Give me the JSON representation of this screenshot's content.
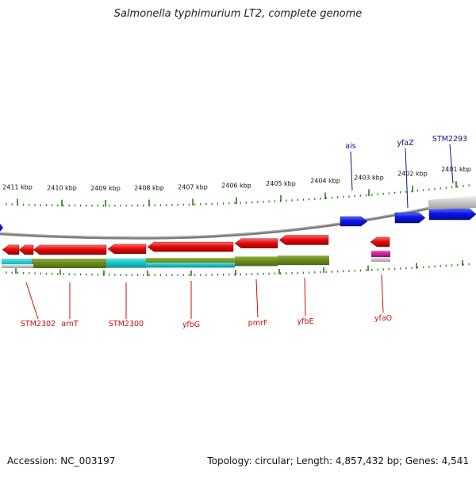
{
  "title": "Salmonella typhimurium LT2, complete genome",
  "footer": {
    "accession": "Accession: NC_003197",
    "summary": "Topology: circular; Length: 4,857,432 bp; Genes: 4,541"
  },
  "kbp_labels": [
    "2411 kbp",
    "2410 kbp",
    "2409 kbp",
    "2408 kbp",
    "2407 kbp",
    "2406 kbp",
    "2405 kbp",
    "2404 kbp",
    "2403 kbp",
    "2402 kbp",
    "2401 kbp"
  ],
  "forward_genes": [
    "ais",
    "yfaZ",
    "STM2293"
  ],
  "reverse_genes": [
    "STM2302",
    "arnT",
    "STM2300",
    "yfbG",
    "pmrF",
    "yfbE",
    "yfaO"
  ],
  "colors": {
    "forward_gene": "#0a14e6",
    "reverse_gene": "#e60a0a",
    "backbone": "#7a7a7a",
    "tick": "#2a7a1a",
    "operon_olive": "#6b8a20",
    "operon_cyan": "#18c4c8",
    "magenta": "#d0209a",
    "forward_label": "#10108a",
    "reverse_label": "#c81010"
  }
}
